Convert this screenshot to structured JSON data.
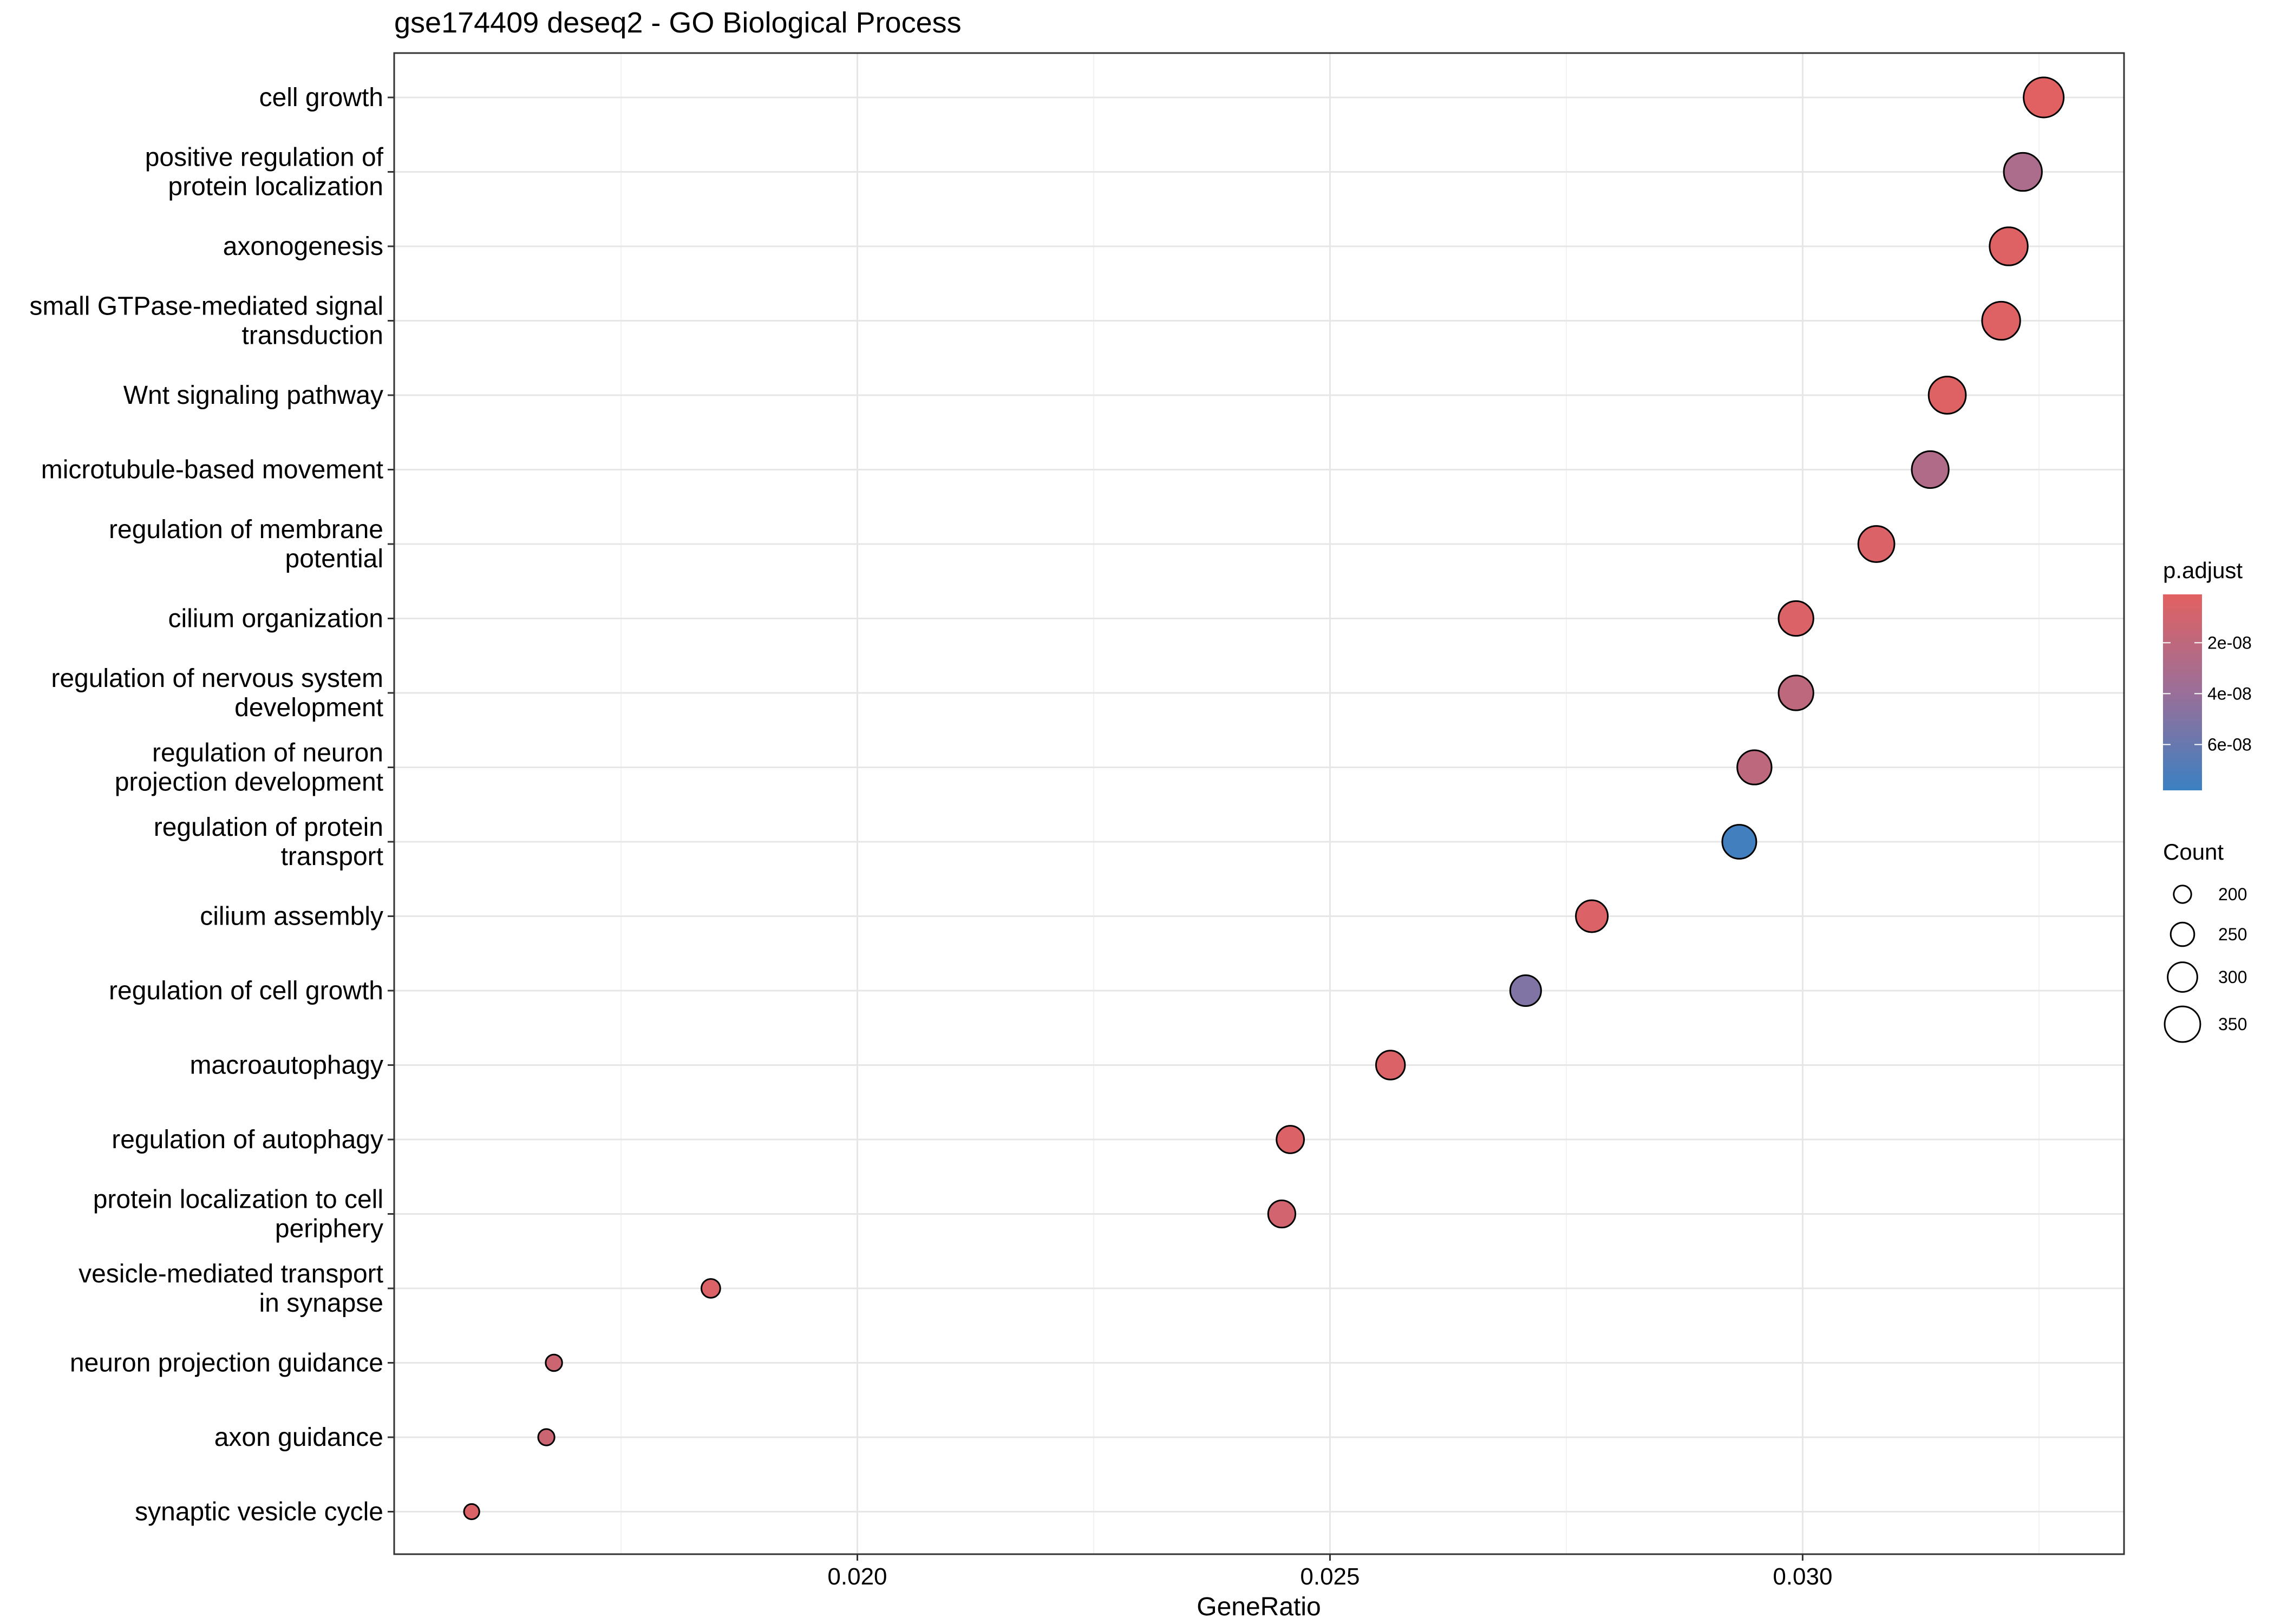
{
  "chart_data": {
    "type": "scatter",
    "title": "gse174409 deseq2 - GO Biological Process",
    "xlabel": "GeneRatio",
    "ylabel": "",
    "xlim": [
      0.0151,
      0.0334
    ],
    "xticks": [
      0.02,
      0.025,
      0.03
    ],
    "xtick_labels": [
      "0.020",
      "0.025",
      "0.030"
    ],
    "grid": true,
    "legend_position": "right",
    "categories": [
      "cell growth",
      "positive regulation of\nprotein localization",
      "axonogenesis",
      "small GTPase-mediated signal\ntransduction",
      "Wnt signaling pathway",
      "microtubule-based movement",
      "regulation of membrane\npotential",
      "cilium organization",
      "regulation of nervous system\ndevelopment",
      "regulation of neuron\nprojection development",
      "regulation of protein\ntransport",
      "cilium assembly",
      "regulation of cell growth",
      "macroautophagy",
      "regulation of autophagy",
      "protein localization to cell\nperiphery",
      "vesicle-mediated transport\nin synapse",
      "neuron projection guidance",
      "axon guidance",
      "synaptic vesicle cycle"
    ],
    "points": [
      {
        "term": "cell growth",
        "gene_ratio": 0.03255,
        "count": 360,
        "p_adjust": 1.5e-09
      },
      {
        "term": "positive regulation of protein localization",
        "gene_ratio": 0.03233,
        "count": 345,
        "p_adjust": 3e-08
      },
      {
        "term": "axonogenesis",
        "gene_ratio": 0.03218,
        "count": 345,
        "p_adjust": 3e-09
      },
      {
        "term": "small GTPase-mediated signal transduction",
        "gene_ratio": 0.0321,
        "count": 345,
        "p_adjust": 3e-09
      },
      {
        "term": "Wnt signaling pathway",
        "gene_ratio": 0.03153,
        "count": 338,
        "p_adjust": 3e-09
      },
      {
        "term": "microtubule-based movement",
        "gene_ratio": 0.03135,
        "count": 336,
        "p_adjust": 2.8e-08
      },
      {
        "term": "regulation of membrane potential",
        "gene_ratio": 0.03078,
        "count": 330,
        "p_adjust": 5e-09
      },
      {
        "term": "cilium organization",
        "gene_ratio": 0.02993,
        "count": 320,
        "p_adjust": 5e-09
      },
      {
        "term": "regulation of nervous system development",
        "gene_ratio": 0.02993,
        "count": 320,
        "p_adjust": 2e-08
      },
      {
        "term": "regulation of neuron projection development",
        "gene_ratio": 0.02949,
        "count": 316,
        "p_adjust": 2e-08
      },
      {
        "term": "regulation of protein transport",
        "gene_ratio": 0.02933,
        "count": 314,
        "p_adjust": 7.5e-08
      },
      {
        "term": "cilium assembly",
        "gene_ratio": 0.02777,
        "count": 298,
        "p_adjust": 5e-09
      },
      {
        "term": "regulation of cell growth",
        "gene_ratio": 0.02707,
        "count": 290,
        "p_adjust": 5e-08
      },
      {
        "term": "macroautophagy",
        "gene_ratio": 0.02564,
        "count": 275,
        "p_adjust": 5e-09
      },
      {
        "term": "regulation of autophagy",
        "gene_ratio": 0.02458,
        "count": 264,
        "p_adjust": 5e-09
      },
      {
        "term": "protein localization to cell periphery",
        "gene_ratio": 0.02449,
        "count": 262,
        "p_adjust": 1e-08
      },
      {
        "term": "vesicle-mediated transport in synapse",
        "gene_ratio": 0.01845,
        "count": 198,
        "p_adjust": 5e-09
      },
      {
        "term": "neuron projection guidance",
        "gene_ratio": 0.01679,
        "count": 180,
        "p_adjust": 1.3e-08
      },
      {
        "term": "axon guidance",
        "gene_ratio": 0.01671,
        "count": 179,
        "p_adjust": 1.3e-08
      },
      {
        "term": "synaptic vesicle cycle",
        "gene_ratio": 0.01592,
        "count": 171,
        "p_adjust": 5e-09
      }
    ],
    "legend_color": {
      "title": "p.adjust",
      "range": [
        1e-09,
        7.8e-08
      ],
      "ticks": [
        2e-08,
        4e-08,
        6e-08
      ],
      "tick_labels": [
        "2e-08",
        "4e-08",
        "6e-08"
      ],
      "low_color": "#e26161",
      "high_color": "#3b80c2"
    },
    "legend_size": {
      "title": "Count",
      "values": [
        200,
        250,
        300,
        350
      ],
      "labels": [
        "200",
        "250",
        "300",
        "350"
      ]
    },
    "colors": {
      "panel_border": "#333333",
      "grid_major": "#e6e6e6",
      "grid_minor": "#f2f2f2",
      "point_stroke": "#000000"
    }
  }
}
